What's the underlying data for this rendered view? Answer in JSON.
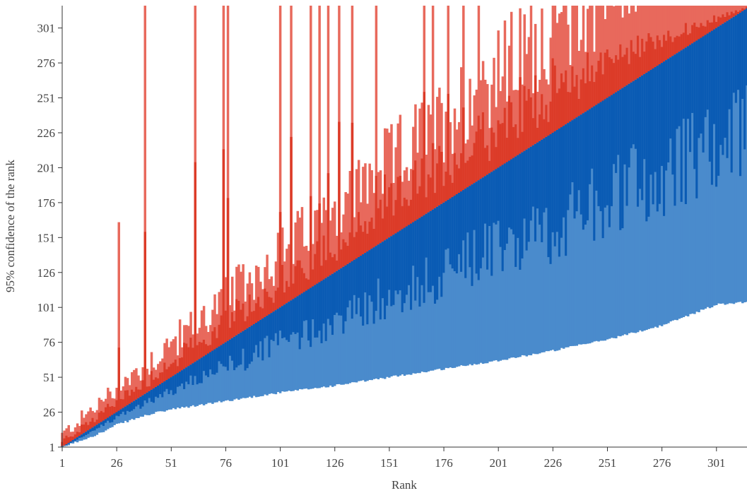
{
  "chart_data": {
    "type": "bar",
    "title": "",
    "xlabel": "Rank",
    "ylabel": "95% confidence of the rank",
    "x_ticks": [
      1,
      26,
      51,
      76,
      101,
      126,
      151,
      176,
      201,
      226,
      251,
      276,
      301
    ],
    "y_ticks": [
      1,
      26,
      51,
      76,
      101,
      126,
      151,
      176,
      201,
      226,
      251,
      276,
      301
    ],
    "xlim": [
      1,
      315
    ],
    "ylim": [
      1,
      317
    ],
    "grid": false,
    "legend": "none",
    "series": [
      {
        "role": "upper-95",
        "color": "#e8695c"
      },
      {
        "role": "upper-inner",
        "color": "#dc3b28"
      },
      {
        "role": "lower-inner",
        "color": "#0a5bb4"
      },
      {
        "role": "lower-95",
        "color": "#4a8bcc"
      }
    ],
    "lower_bound_points": [
      [
        1,
        1
      ],
      [
        10,
        6
      ],
      [
        20,
        12
      ],
      [
        26,
        17
      ],
      [
        40,
        24
      ],
      [
        51,
        28
      ],
      [
        60,
        30
      ],
      [
        76,
        34
      ],
      [
        101,
        40
      ],
      [
        126,
        45
      ],
      [
        151,
        51
      ],
      [
        176,
        57
      ],
      [
        201,
        63
      ],
      [
        226,
        70
      ],
      [
        251,
        78
      ],
      [
        276,
        88
      ],
      [
        301,
        103
      ],
      [
        315,
        105
      ]
    ],
    "upper_spikes": [
      [
        27,
        162
      ],
      [
        39,
        317
      ],
      [
        62,
        317
      ],
      [
        75,
        317
      ],
      [
        77,
        317
      ],
      [
        101,
        317
      ],
      [
        106,
        317
      ],
      [
        115,
        317
      ],
      [
        119,
        317
      ],
      [
        123,
        317
      ],
      [
        128,
        317
      ],
      [
        134,
        317
      ],
      [
        145,
        317
      ],
      [
        167,
        317
      ],
      [
        171,
        317
      ],
      [
        178,
        317
      ],
      [
        185,
        317
      ],
      [
        192,
        317
      ]
    ],
    "lower_outliers": [
      [
        80,
        72
      ],
      [
        116,
        110
      ],
      [
        120,
        128
      ],
      [
        168,
        165
      ],
      [
        186,
        122
      ]
    ]
  }
}
